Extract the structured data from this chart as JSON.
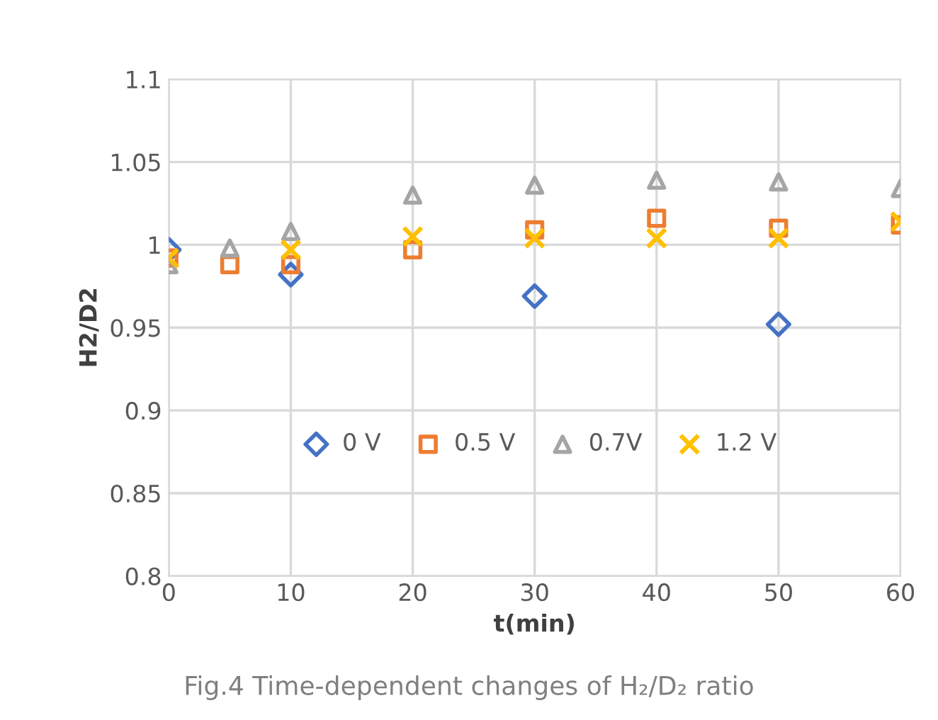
{
  "chart_data": {
    "type": "scatter",
    "xlabel": "t(min)",
    "ylabel": "H2/D2",
    "annotations": [
      "Fig.4 Time-dependent changes of H₂/D₂ ratio"
    ],
    "series": [
      {
        "name": "0 V",
        "color": "#4472c4",
        "marker": "diamond",
        "x": [
          0,
          10,
          30,
          50
        ],
        "values": [
          0.997,
          0.982,
          0.969,
          0.952
        ]
      },
      {
        "name": "0.5 V",
        "color": "#ed7d31",
        "marker": "square",
        "x": [
          0,
          5,
          10,
          20,
          30,
          40,
          50,
          60
        ],
        "values": [
          0.992,
          0.988,
          0.988,
          0.997,
          1.009,
          1.016,
          1.01,
          1.012
        ]
      },
      {
        "name": "0.7V",
        "color": "#a5a5a5",
        "marker": "triangle",
        "x": [
          0,
          5,
          10,
          20,
          30,
          40,
          50,
          60
        ],
        "values": [
          0.988,
          0.998,
          1.008,
          1.03,
          1.036,
          1.039,
          1.038,
          1.034
        ]
      },
      {
        "name": "1.2 V",
        "color": "#ffc000",
        "marker": "cross",
        "x": [
          0,
          10,
          20,
          30,
          40,
          50,
          60
        ],
        "values": [
          0.992,
          0.997,
          1.005,
          1.004,
          1.004,
          1.004,
          1.014
        ]
      }
    ],
    "xlim": [
      0,
      60
    ],
    "xticks": [
      0,
      10,
      20,
      30,
      40,
      50,
      60
    ],
    "ylim": [
      0.8,
      1.1
    ],
    "yticks": [
      {
        "value": 0.8,
        "label": "0.8"
      },
      {
        "value": 0.85,
        "label": "0.85"
      },
      {
        "value": 0.9,
        "label": "0.9"
      },
      {
        "value": 0.95,
        "label": "0.95"
      },
      {
        "value": 1.0,
        "label": "1"
      },
      {
        "value": 1.05,
        "label": "1.05"
      },
      {
        "value": 1.1,
        "label": "1.1"
      }
    ],
    "grid": true,
    "legend": "bottom"
  }
}
